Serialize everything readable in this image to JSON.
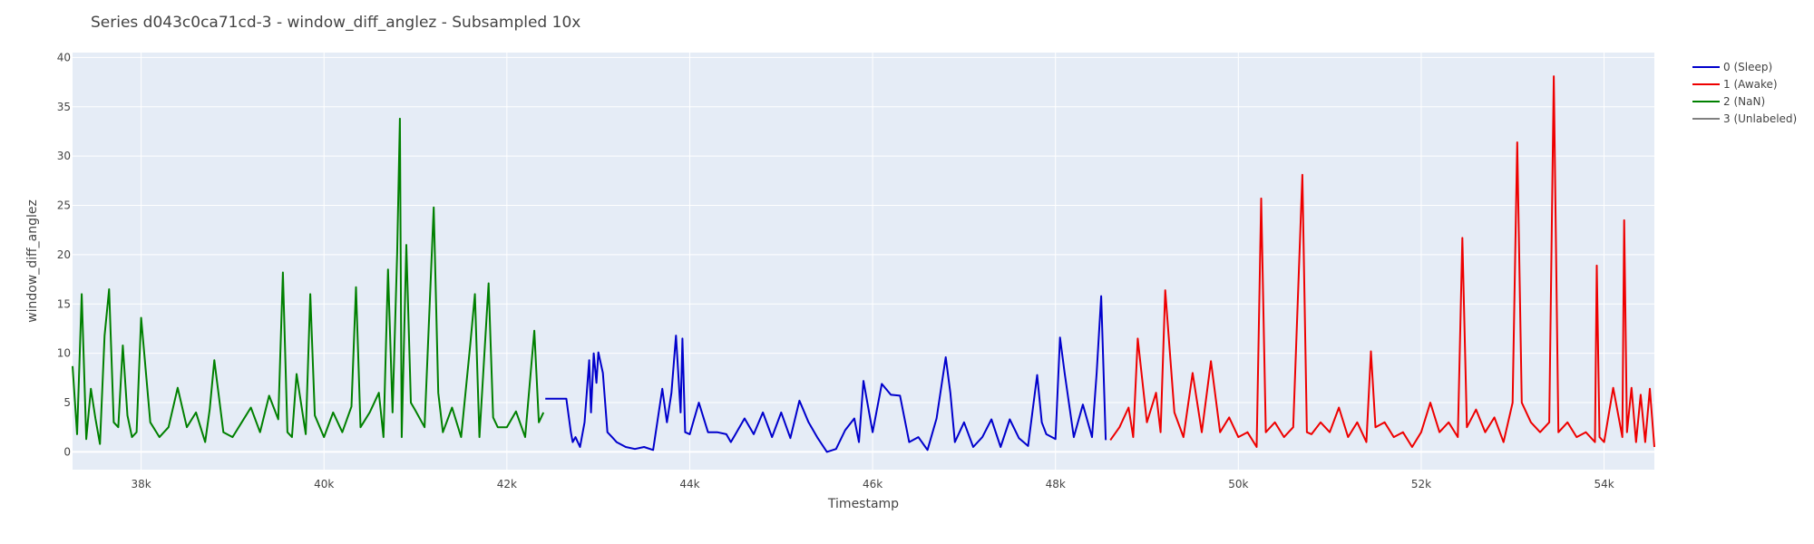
{
  "chart_data": {
    "type": "line",
    "title": "Series d043c0ca71cd-3 - window_diff_anglez - Subsampled 10x",
    "xlabel": "Timestamp",
    "ylabel": "window_diff_anglez",
    "xlim": [
      37250,
      54550
    ],
    "ylim": [
      -1.8,
      40.5
    ],
    "xticks": [
      38000,
      40000,
      42000,
      44000,
      46000,
      48000,
      50000,
      52000,
      54000
    ],
    "xtick_labels": [
      "38k",
      "40k",
      "42k",
      "44k",
      "46k",
      "48k",
      "50k",
      "52k",
      "54k"
    ],
    "yticks": [
      0,
      5,
      10,
      15,
      20,
      25,
      30,
      35,
      40
    ],
    "ytick_labels": [
      "0",
      "5",
      "10",
      "15",
      "20",
      "25",
      "30",
      "35",
      "40"
    ],
    "grid": true,
    "legend_position": "right",
    "series": [
      {
        "name": "0 (Sleep)",
        "color": "#0000cc",
        "x": [
          42420,
          42500,
          42650,
          42700,
          42720,
          42750,
          42800,
          42850,
          42900,
          42920,
          42950,
          42980,
          43000,
          43050,
          43100,
          43150,
          43200,
          43300,
          43400,
          43500,
          43600,
          43700,
          43750,
          43800,
          43850,
          43900,
          43920,
          43950,
          44000,
          44100,
          44200,
          44300,
          44400,
          44450,
          44500,
          44600,
          44700,
          44800,
          44900,
          45000,
          45100,
          45200,
          45300,
          45400,
          45500,
          45600,
          45700,
          45800,
          45850,
          45900,
          46000,
          46100,
          46200,
          46300,
          46400,
          46500,
          46600,
          46700,
          46800,
          46850,
          46900,
          47000,
          47100,
          47200,
          47300,
          47400,
          47500,
          47600,
          47700,
          47800,
          47850,
          47900,
          48000,
          48050,
          48100,
          48200,
          48300,
          48400,
          48450,
          48500,
          48550
        ],
        "y": [
          5.4,
          5.4,
          5.4,
          2,
          1,
          1.5,
          0.5,
          3,
          9.3,
          4,
          10,
          7,
          10.1,
          8,
          2,
          1.5,
          1,
          0.5,
          0.3,
          0.5,
          0.2,
          6.4,
          3,
          6,
          11.8,
          4,
          11.5,
          2,
          1.8,
          5,
          2,
          2,
          1.8,
          1,
          1.8,
          3.4,
          1.8,
          4,
          1.5,
          4,
          1.4,
          5.2,
          3,
          1.4,
          0,
          0.3,
          2.2,
          3.4,
          1,
          7.2,
          2,
          6.9,
          5.8,
          5.7,
          1,
          1.5,
          0.2,
          3.4,
          9.6,
          6,
          1,
          3,
          0.5,
          1.5,
          3.3,
          0.5,
          3.3,
          1.4,
          0.6,
          7.8,
          3,
          1.8,
          1.3,
          11.6,
          8,
          1.5,
          4.8,
          1.5,
          8,
          15.8,
          1.2
        ]
      },
      {
        "name": "1 (Awake)",
        "color": "#ee0000",
        "x": [
          48600,
          48700,
          48800,
          48850,
          48900,
          49000,
          49100,
          49150,
          49200,
          49300,
          49400,
          49500,
          49600,
          49700,
          49800,
          49900,
          50000,
          50100,
          50200,
          50250,
          50300,
          50400,
          50500,
          50600,
          50700,
          50750,
          50800,
          50900,
          51000,
          51100,
          51200,
          51300,
          51400,
          51450,
          51500,
          51600,
          51700,
          51800,
          51900,
          52000,
          52100,
          52200,
          52300,
          52400,
          52450,
          52500,
          52600,
          52700,
          52800,
          52900,
          53000,
          53030,
          53050,
          53100,
          53200,
          53300,
          53400,
          53450,
          53500,
          53600,
          53700,
          53800,
          53900,
          53920,
          53950,
          54000,
          54100,
          54200,
          54220,
          54250,
          54300,
          54350,
          54400,
          54450,
          54500,
          54550
        ],
        "y": [
          1.2,
          2.5,
          4.5,
          1.5,
          11.5,
          3,
          6,
          2,
          16.4,
          4,
          1.5,
          8,
          2,
          9.2,
          2,
          3.5,
          1.5,
          2,
          0.5,
          25.7,
          2,
          3,
          1.5,
          2.5,
          28.1,
          2,
          1.8,
          3,
          2,
          4.5,
          1.5,
          3,
          1,
          10.2,
          2.5,
          3,
          1.5,
          2,
          0.5,
          2,
          5,
          2,
          3,
          1.5,
          21.7,
          2.5,
          4.3,
          2,
          3.5,
          1,
          5,
          21.2,
          31.4,
          5,
          3,
          2,
          3,
          38.1,
          2,
          3,
          1.5,
          2,
          1,
          18.9,
          1.5,
          1,
          6.5,
          1.5,
          23.5,
          2,
          6.5,
          1,
          5.8,
          1,
          6.4,
          0.5
        ]
      },
      {
        "name": "2 (NaN)",
        "color": "#008000",
        "x": [
          37250,
          37300,
          37350,
          37400,
          37450,
          37500,
          37550,
          37600,
          37650,
          37700,
          37750,
          37800,
          37850,
          37900,
          37950,
          38000,
          38100,
          38200,
          38300,
          38400,
          38500,
          38600,
          38700,
          38750,
          38800,
          38900,
          39000,
          39100,
          39200,
          39300,
          39400,
          39500,
          39550,
          39600,
          39650,
          39700,
          39800,
          39850,
          39900,
          40000,
          40100,
          40200,
          40300,
          40350,
          40400,
          40500,
          40600,
          40650,
          40700,
          40750,
          40800,
          40830,
          40850,
          40900,
          40950,
          41000,
          41100,
          41200,
          41250,
          41300,
          41400,
          41500,
          41600,
          41650,
          41700,
          41800,
          41850,
          41900,
          42000,
          42100,
          42200,
          42300,
          42350,
          42400
        ],
        "y": [
          8.7,
          1.8,
          16,
          1.3,
          6.4,
          3.4,
          0.8,
          11.8,
          16.5,
          3,
          2.5,
          10.8,
          3.7,
          1.5,
          2,
          13.6,
          3,
          1.5,
          2.5,
          6.5,
          2.5,
          4,
          1,
          4.3,
          9.3,
          2,
          1.5,
          3,
          4.5,
          2,
          5.7,
          3.3,
          18.2,
          2,
          1.5,
          7.9,
          1.8,
          16,
          3.7,
          1.5,
          4,
          2,
          4.6,
          16.7,
          2.5,
          4,
          6,
          1.5,
          18.5,
          4,
          20.2,
          33.8,
          1.5,
          21,
          5,
          4.2,
          2.5,
          24.8,
          6,
          2,
          4.5,
          1.5,
          10.9,
          16,
          1.5,
          17.1,
          3.5,
          2.5,
          2.5,
          4.1,
          1.5,
          12.3,
          3,
          4
        ]
      },
      {
        "name": "3 (Unlabeled)",
        "color": "#808080",
        "x": [],
        "y": []
      }
    ]
  }
}
